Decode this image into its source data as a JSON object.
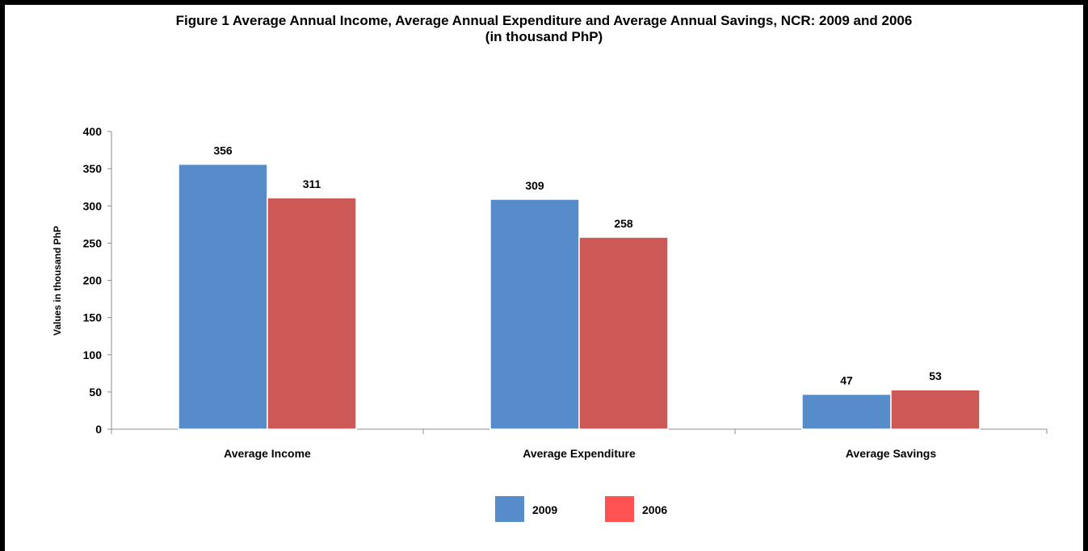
{
  "chart_data": {
    "type": "bar",
    "title": "Figure 1 Average Annual Income, Average Annual Expenditure and Average Annual Savings, NCR: 2009 and 2006",
    "subtitle": "(in thousand PhP)",
    "xlabel": "",
    "ylabel": "Values in thousand PhP",
    "categories": [
      "Average Income",
      "Average Expenditure",
      "Average Savings"
    ],
    "series": [
      {
        "name": "2009",
        "values": [
          356,
          309,
          47
        ],
        "color": "#578CCB"
      },
      {
        "name": "2006",
        "values": [
          311,
          258,
          53
        ],
        "color": "#CD5957"
      }
    ],
    "legend_colors": [
      "#578CCB",
      "#FF5252"
    ],
    "ylim": [
      0,
      400
    ],
    "yticks": [
      0,
      50,
      100,
      150,
      200,
      250,
      300,
      350,
      400
    ],
    "grid": false,
    "legend_position": "bottom"
  }
}
